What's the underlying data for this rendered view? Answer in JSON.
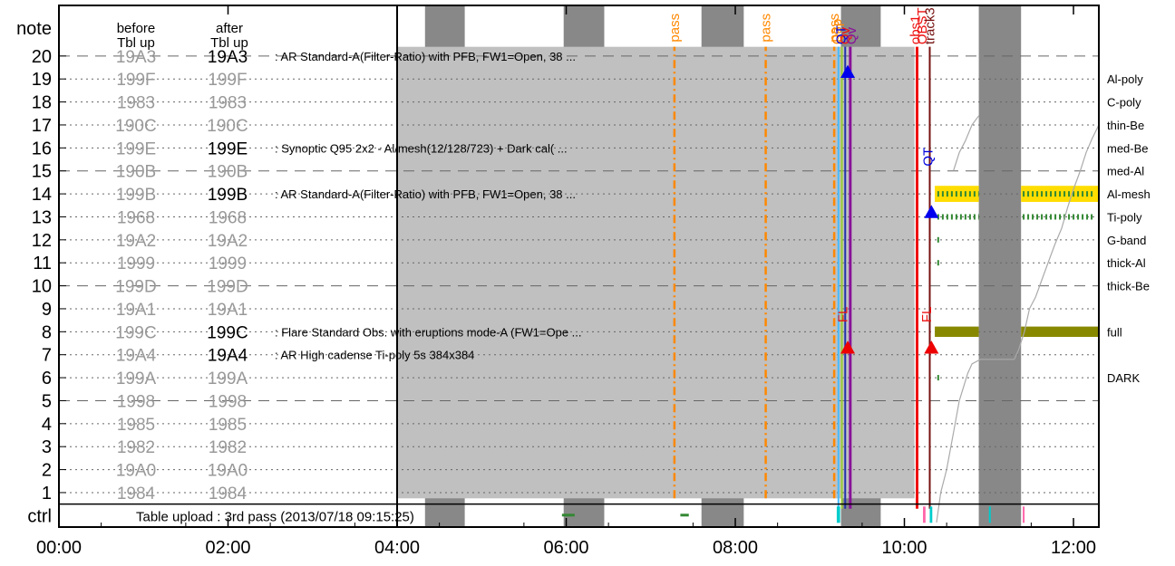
{
  "chart_data": {
    "type": "timeline",
    "x_axis": {
      "unit": "hour",
      "range": [
        0,
        12.3
      ],
      "ticks": [
        {
          "v": 0,
          "label": "00:00"
        },
        {
          "v": 2,
          "label": "02:00"
        },
        {
          "v": 4,
          "label": "04:00"
        },
        {
          "v": 6,
          "label": "06:00"
        },
        {
          "v": 8,
          "label": "08:00"
        },
        {
          "v": 10,
          "label": "10:00"
        },
        {
          "v": 12,
          "label": "12:00"
        }
      ]
    },
    "y_axis": {
      "range": [
        -0.5,
        22.2
      ],
      "header_label": "note",
      "ctrl_label": "ctrl",
      "ticks": [
        "1",
        "2",
        "3",
        "4",
        "5",
        "6",
        "7",
        "8",
        "9",
        "10",
        "11",
        "12",
        "13",
        "14",
        "15",
        "16",
        "17",
        "18",
        "19",
        "20"
      ]
    },
    "column_headers": {
      "before": "before\nTbl up",
      "after": "after\nTbl up"
    },
    "rows": [
      {
        "row": 1,
        "before": "1984",
        "after": "1984",
        "after_active": false
      },
      {
        "row": 2,
        "before": "19A0",
        "after": "19A0",
        "after_active": false
      },
      {
        "row": 3,
        "before": "1982",
        "after": "1982",
        "after_active": false
      },
      {
        "row": 4,
        "before": "1985",
        "after": "1985",
        "after_active": false
      },
      {
        "row": 5,
        "before": "1998",
        "after": "1998",
        "after_active": false
      },
      {
        "row": 6,
        "before": "199A",
        "after": "199A",
        "after_active": false
      },
      {
        "row": 7,
        "before": "19A4",
        "after": "19A4",
        "after_active": true,
        "note": ": AR High cadense Ti-poly 5s 384x384"
      },
      {
        "row": 8,
        "before": "199C",
        "after": "199C",
        "after_active": true,
        "note": ": Flare Standard Obs. with eruptions mode-A (FW1=Ope ..."
      },
      {
        "row": 9,
        "before": "19A1",
        "after": "19A1",
        "after_active": false
      },
      {
        "row": 10,
        "before": "199D",
        "after": "199D",
        "after_active": false
      },
      {
        "row": 11,
        "before": "1999",
        "after": "1999",
        "after_active": false
      },
      {
        "row": 12,
        "before": "19A2",
        "after": "19A2",
        "after_active": false
      },
      {
        "row": 13,
        "before": "1968",
        "after": "1968",
        "after_active": false
      },
      {
        "row": 14,
        "before": "199B",
        "after": "199B",
        "after_active": true,
        "note": ": AR Standard-A(Filter-Ratio) with PFB, FW1=Open, 38 ..."
      },
      {
        "row": 15,
        "before": "190B",
        "after": "190B",
        "after_active": false
      },
      {
        "row": 16,
        "before": "199E",
        "after": "199E",
        "after_active": true,
        "note": ": Synoptic Q95 2x2 - Al/mesh(12/128/723) + Dark cal( ..."
      },
      {
        "row": 17,
        "before": "190C",
        "after": "190C",
        "after_active": false
      },
      {
        "row": 18,
        "before": "1983",
        "after": "1983",
        "after_active": false
      },
      {
        "row": 19,
        "before": "199F",
        "after": "199F",
        "after_active": false
      },
      {
        "row": 20,
        "before": "19A3",
        "after": "19A3",
        "after_active": true,
        "note": ": AR Standard-A(Filter-Ratio) with PFB, FW1=Open, 38 ..."
      }
    ],
    "filter_labels": [
      {
        "y": 19,
        "label": "Al-poly"
      },
      {
        "y": 18,
        "label": "C-poly"
      },
      {
        "y": 17,
        "label": "thin-Be"
      },
      {
        "y": 16,
        "label": "med-Be"
      },
      {
        "y": 15,
        "label": "med-Al"
      },
      {
        "y": 14,
        "label": "Al-mesh"
      },
      {
        "y": 13,
        "label": "Ti-poly"
      },
      {
        "y": 12,
        "label": "G-band"
      },
      {
        "y": 11,
        "label": "thick-Al"
      },
      {
        "y": 10,
        "label": "thick-Be"
      },
      {
        "y": 8,
        "label": "full"
      },
      {
        "y": 6,
        "label": "DARK"
      }
    ],
    "night_bands": [
      {
        "x0": 4.33,
        "x1": 4.8
      },
      {
        "x0": 5.97,
        "x1": 6.45
      },
      {
        "x0": 7.6,
        "x1": 8.1
      },
      {
        "x0": 9.25,
        "x1": 9.72
      },
      {
        "x0": 10.88,
        "x1": 11.38
      }
    ],
    "table_block": {
      "x0": 4.0,
      "x1": 10.12,
      "y0": 0.75,
      "y1": 20.4
    },
    "table_upload_note": "Table upload : 3rd pass (2013/07/18 09:15:25)",
    "passes": [
      {
        "x": 7.28,
        "label": "pass",
        "color": "#ff8800"
      },
      {
        "x": 8.36,
        "label": "pass",
        "color": "#ff8800"
      },
      {
        "x": 9.17,
        "label": "pass",
        "color": "#ff8800"
      }
    ],
    "event_lines": [
      {
        "x": 9.22,
        "color": "#44bbff",
        "width": 2
      },
      {
        "x": 9.26,
        "color": "#99cc33",
        "width": 2
      },
      {
        "x": 9.3,
        "color": "#2233aa",
        "width": 2
      },
      {
        "x": 9.36,
        "color": "#881199",
        "width": 3
      },
      {
        "x": 10.15,
        "color": "#ee1111",
        "width": 3
      },
      {
        "x": 10.3,
        "color": "#771111",
        "width": 2
      }
    ],
    "vertical_labels": [
      {
        "x": 9.2,
        "y": 20.5,
        "text": "Q3p",
        "color": "#ff8800"
      },
      {
        "x": 9.25,
        "y": 20.5,
        "text": "QT",
        "color": "#0000dd"
      },
      {
        "x": 9.3,
        "y": 20.5,
        "text": "Qv",
        "color": "#ee1111"
      },
      {
        "x": 9.37,
        "y": 20.5,
        "text": "Qv",
        "color": "#881199"
      },
      {
        "x": 10.13,
        "y": 20.5,
        "text": "obs1",
        "color": "#ee1111"
      },
      {
        "x": 10.21,
        "y": 20.5,
        "text": "OBST",
        "color": "#ee1111"
      },
      {
        "x": 10.3,
        "y": 20.5,
        "text": "track3",
        "color": "#771111"
      },
      {
        "x": 10.28,
        "y": 15.2,
        "text": "QT",
        "color": "#0000dd"
      },
      {
        "x": 9.27,
        "y": 8.4,
        "text": "FL",
        "color": "#ee1111"
      },
      {
        "x": 10.26,
        "y": 8.4,
        "text": "FL",
        "color": "#ee1111"
      }
    ],
    "markers": [
      {
        "x": 9.33,
        "y": 19.3,
        "shape": "triangle-up",
        "color": "#0000ee"
      },
      {
        "x": 9.33,
        "y": 7.3,
        "shape": "triangle-up",
        "color": "#ee0000"
      },
      {
        "x": 10.32,
        "y": 13.2,
        "shape": "triangle-up",
        "color": "#0000ee"
      },
      {
        "x": 10.32,
        "y": 7.3,
        "shape": "triangle-up",
        "color": "#ee0000"
      }
    ],
    "thick_bars": [
      {
        "x0": 10.36,
        "x1": 10.88,
        "y": 14,
        "color": "#ffdd00",
        "height": 0.7
      },
      {
        "x0": 11.38,
        "x1": 12.3,
        "y": 14,
        "color": "#ffdd00",
        "height": 0.7
      },
      {
        "x0": 10.36,
        "x1": 10.88,
        "y": 8,
        "color": "#888800",
        "height": 0.45
      },
      {
        "x0": 11.38,
        "x1": 12.3,
        "y": 8,
        "color": "#888800",
        "height": 0.45
      }
    ],
    "dotted_bars": [
      {
        "x0": 10.39,
        "x1": 10.88,
        "y": 14,
        "color": "#338833"
      },
      {
        "x0": 11.4,
        "x1": 12.25,
        "y": 14,
        "color": "#338833"
      },
      {
        "x0": 10.39,
        "x1": 10.88,
        "y": 13,
        "color": "#338833"
      },
      {
        "x0": 11.4,
        "x1": 12.25,
        "y": 13,
        "color": "#338833"
      }
    ],
    "small_ticks": [
      {
        "x": 10.4,
        "y": 12
      },
      {
        "x": 10.4,
        "y": 11
      },
      {
        "x": 10.4,
        "y": 6
      }
    ],
    "ctrl_marks": [
      {
        "x0": 5.95,
        "x1": 6.1,
        "color": "#338833"
      },
      {
        "x0": 7.35,
        "x1": 7.45,
        "color": "#338833"
      },
      {
        "x0": 9.2,
        "x1": 9.24,
        "color": "#00cccc"
      },
      {
        "x0": 10.22,
        "x1": 10.25,
        "color": "#ff66aa"
      },
      {
        "x0": 10.3,
        "x1": 10.33,
        "color": "#00cccc"
      },
      {
        "x0": 11.0,
        "x1": 11.02,
        "color": "#00cccc"
      },
      {
        "x0": 11.4,
        "x1": 11.42,
        "color": "#ff66aa"
      }
    ],
    "staircase": [
      [
        10.38,
        -0.3
      ],
      [
        10.43,
        1.0
      ],
      [
        10.5,
        2.0
      ],
      [
        10.55,
        3.0
      ],
      [
        10.6,
        4.0
      ],
      [
        10.65,
        5.0
      ],
      [
        10.7,
        5.6
      ],
      [
        10.75,
        6.2
      ],
      [
        10.8,
        6.6
      ],
      [
        10.9,
        6.8
      ],
      [
        11.3,
        6.8
      ],
      [
        11.35,
        7.2
      ],
      [
        11.42,
        8.0
      ],
      [
        11.48,
        9.0
      ],
      [
        11.55,
        9.5
      ],
      [
        11.62,
        10.2
      ],
      [
        11.7,
        11.0
      ],
      [
        11.78,
        11.8
      ],
      [
        11.86,
        12.5
      ],
      [
        11.93,
        13.4
      ],
      [
        12.0,
        14.2
      ],
      [
        12.08,
        15.0
      ],
      [
        12.15,
        15.8
      ],
      [
        12.22,
        16.4
      ],
      [
        12.3,
        17.0
      ]
    ],
    "staircase_segments": [
      [
        [
          10.58,
          15.0
        ],
        [
          10.65,
          15.8
        ],
        [
          10.72,
          16.3
        ],
        [
          10.8,
          17.0
        ],
        [
          10.88,
          17.4
        ]
      ]
    ],
    "colors": {
      "grid_dash": "#666666",
      "table_fill": "#c0c0c0",
      "night_fill": "#888888",
      "inactive_code": "#999999",
      "active_code": "#000000"
    }
  }
}
